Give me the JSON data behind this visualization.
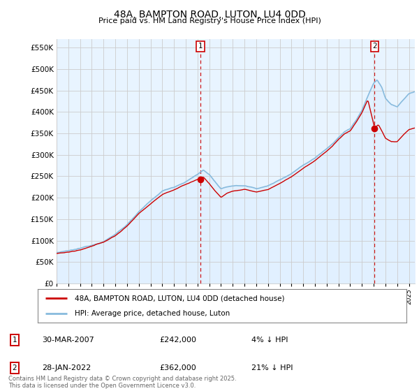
{
  "title": "48A, BAMPTON ROAD, LUTON, LU4 0DD",
  "subtitle": "Price paid vs. HM Land Registry's House Price Index (HPI)",
  "ylabel_ticks": [
    0,
    50000,
    100000,
    150000,
    200000,
    250000,
    300000,
    350000,
    400000,
    450000,
    500000,
    550000
  ],
  "ylim": [
    0,
    570000
  ],
  "xlim_start": 1995.0,
  "xlim_end": 2025.5,
  "sale1_date": 2007.24,
  "sale1_price": 242000,
  "sale2_date": 2022.08,
  "sale2_price": 362000,
  "property_line_color": "#cc0000",
  "hpi_line_color": "#88bbdd",
  "hpi_fill_color": "#ddeeff",
  "marker_box_color": "#cc0000",
  "vline_color": "#cc0000",
  "grid_color": "#cccccc",
  "chart_bg_color": "#e8f4ff",
  "background_color": "#ffffff",
  "legend_label_property": "48A, BAMPTON ROAD, LUTON, LU4 0DD (detached house)",
  "legend_label_hpi": "HPI: Average price, detached house, Luton",
  "footer_text": "Contains HM Land Registry data © Crown copyright and database right 2025.\nThis data is licensed under the Open Government Licence v3.0.",
  "annotation1_label": "1",
  "annotation1_date_str": "30-MAR-2007",
  "annotation1_price_str": "£242,000",
  "annotation1_hpi_str": "4% ↓ HPI",
  "annotation2_label": "2",
  "annotation2_date_str": "28-JAN-2022",
  "annotation2_price_str": "£362,000",
  "annotation2_hpi_str": "21% ↓ HPI"
}
